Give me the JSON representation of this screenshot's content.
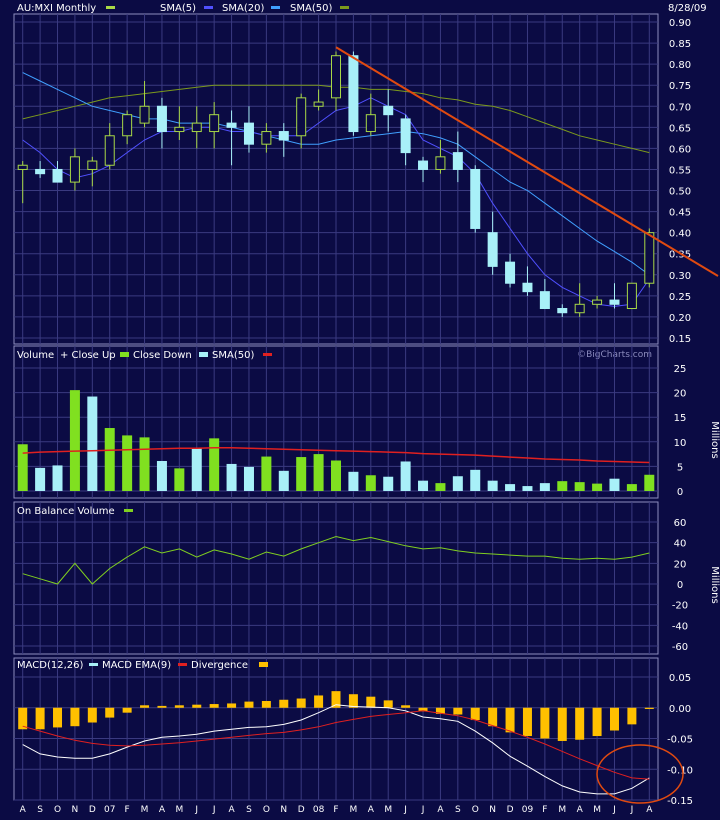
{
  "header": {
    "symbol_label": "AU:MXI Monthly",
    "date": "8/28/09"
  },
  "watermark": "©BigCharts.com",
  "colors": {
    "background": "#0b0b44",
    "grid": "#3a3a80",
    "border": "#8c8cbe",
    "candle_up": "#a8d846",
    "candle_down": "#a8f0f8",
    "sma5": "#5050ff",
    "sma20": "#40a0ff",
    "sma50": "#7c9a1c",
    "trendline": "#e04a10",
    "vol_up": "#80e020",
    "vol_down": "#a8f0f8",
    "vol_sma": "#e02020",
    "obv": "#80d020",
    "macd": "#ffffff",
    "macd_ema": "#e02020",
    "divergence": "#ffc000",
    "annotation": "#e04a10"
  },
  "panels": {
    "price": {
      "legend": [
        {
          "label": "SMA(5)",
          "swatch": "#5050ff"
        },
        {
          "label": "SMA(20)",
          "swatch": "#40a0ff"
        },
        {
          "label": "SMA(50)",
          "swatch": "#7c9a1c"
        }
      ]
    },
    "volume": {
      "title": "Volume",
      "legend": [
        {
          "label": "+ Close Up",
          "swatch": "#80e020"
        },
        {
          "label": "Close Down",
          "swatch": "#a8f0f8"
        },
        {
          "label": "SMA(50)",
          "swatch": "#e02020"
        }
      ],
      "unit": "Millions"
    },
    "obv": {
      "title": "On Balance Volume",
      "swatch": "#80d020",
      "unit": "Millions"
    },
    "macd": {
      "legend": [
        {
          "label": "MACD(12,26)",
          "swatch": "#a8f0f8"
        },
        {
          "label": "MACD EMA(9)",
          "swatch": "#e02020"
        },
        {
          "label": "Divergence",
          "swatch": "#ffc000"
        }
      ]
    }
  },
  "chart_data": {
    "type": "candlestick",
    "x_tick_labels": [
      "A",
      "S",
      "O",
      "N",
      "D",
      "07",
      "F",
      "M",
      "A",
      "M",
      "J",
      "J",
      "A",
      "S",
      "O",
      "N",
      "D",
      "08",
      "F",
      "M",
      "A",
      "M",
      "J",
      "J",
      "A",
      "S",
      "O",
      "N",
      "D",
      "09",
      "F",
      "M",
      "A",
      "M",
      "J",
      "J",
      "A"
    ],
    "price": {
      "ylim": [
        0.15,
        0.9
      ],
      "y_ticks": [
        "0.90",
        "0.85",
        "0.80",
        "0.75",
        "0.70",
        "0.65",
        "0.60",
        "0.55",
        "0.50",
        "0.45",
        "0.40",
        "0.35",
        "0.30",
        "0.25",
        "0.20",
        "0.15"
      ],
      "candles": [
        {
          "o": 0.55,
          "h": 0.57,
          "l": 0.47,
          "c": 0.56
        },
        {
          "o": 0.55,
          "h": 0.57,
          "l": 0.53,
          "c": 0.54
        },
        {
          "o": 0.55,
          "h": 0.57,
          "l": 0.52,
          "c": 0.52
        },
        {
          "o": 0.52,
          "h": 0.6,
          "l": 0.5,
          "c": 0.58
        },
        {
          "o": 0.55,
          "h": 0.58,
          "l": 0.51,
          "c": 0.57
        },
        {
          "o": 0.56,
          "h": 0.66,
          "l": 0.55,
          "c": 0.63
        },
        {
          "o": 0.63,
          "h": 0.69,
          "l": 0.61,
          "c": 0.68
        },
        {
          "o": 0.66,
          "h": 0.76,
          "l": 0.65,
          "c": 0.7
        },
        {
          "o": 0.7,
          "h": 0.72,
          "l": 0.6,
          "c": 0.64
        },
        {
          "o": 0.64,
          "h": 0.7,
          "l": 0.62,
          "c": 0.65
        },
        {
          "o": 0.64,
          "h": 0.7,
          "l": 0.6,
          "c": 0.66
        },
        {
          "o": 0.64,
          "h": 0.71,
          "l": 0.6,
          "c": 0.68
        },
        {
          "o": 0.66,
          "h": 0.69,
          "l": 0.56,
          "c": 0.65
        },
        {
          "o": 0.66,
          "h": 0.7,
          "l": 0.59,
          "c": 0.61
        },
        {
          "o": 0.61,
          "h": 0.66,
          "l": 0.59,
          "c": 0.64
        },
        {
          "o": 0.64,
          "h": 0.66,
          "l": 0.58,
          "c": 0.62
        },
        {
          "o": 0.63,
          "h": 0.73,
          "l": 0.6,
          "c": 0.72
        },
        {
          "o": 0.7,
          "h": 0.74,
          "l": 0.69,
          "c": 0.71
        },
        {
          "o": 0.72,
          "h": 0.83,
          "l": 0.69,
          "c": 0.82
        },
        {
          "o": 0.82,
          "h": 0.83,
          "l": 0.63,
          "c": 0.64
        },
        {
          "o": 0.64,
          "h": 0.73,
          "l": 0.63,
          "c": 0.68
        },
        {
          "o": 0.7,
          "h": 0.74,
          "l": 0.64,
          "c": 0.68
        },
        {
          "o": 0.67,
          "h": 0.68,
          "l": 0.56,
          "c": 0.59
        },
        {
          "o": 0.57,
          "h": 0.58,
          "l": 0.52,
          "c": 0.55
        },
        {
          "o": 0.55,
          "h": 0.62,
          "l": 0.54,
          "c": 0.58
        },
        {
          "o": 0.59,
          "h": 0.64,
          "l": 0.52,
          "c": 0.55
        },
        {
          "o": 0.55,
          "h": 0.56,
          "l": 0.4,
          "c": 0.41
        },
        {
          "o": 0.4,
          "h": 0.45,
          "l": 0.3,
          "c": 0.32
        },
        {
          "o": 0.33,
          "h": 0.35,
          "l": 0.27,
          "c": 0.28
        },
        {
          "o": 0.28,
          "h": 0.32,
          "l": 0.25,
          "c": 0.26
        },
        {
          "o": 0.26,
          "h": 0.29,
          "l": 0.22,
          "c": 0.22
        },
        {
          "o": 0.22,
          "h": 0.23,
          "l": 0.2,
          "c": 0.21
        },
        {
          "o": 0.21,
          "h": 0.28,
          "l": 0.2,
          "c": 0.23
        },
        {
          "o": 0.23,
          "h": 0.25,
          "l": 0.22,
          "c": 0.24
        },
        {
          "o": 0.24,
          "h": 0.28,
          "l": 0.22,
          "c": 0.23
        },
        {
          "o": 0.22,
          "h": 0.28,
          "l": 0.22,
          "c": 0.28
        },
        {
          "o": 0.28,
          "h": 0.41,
          "l": 0.27,
          "c": 0.4
        }
      ],
      "sma5": [
        0.62,
        0.59,
        0.55,
        0.53,
        0.54,
        0.56,
        0.59,
        0.62,
        0.64,
        0.64,
        0.65,
        0.65,
        0.64,
        0.64,
        0.63,
        0.63,
        0.63,
        0.66,
        0.69,
        0.7,
        0.72,
        0.7,
        0.68,
        0.62,
        0.6,
        0.58,
        0.54,
        0.47,
        0.41,
        0.35,
        0.3,
        0.27,
        0.25,
        0.23,
        0.225,
        0.23,
        0.29
      ],
      "sma20": [
        0.78,
        0.76,
        0.74,
        0.72,
        0.7,
        0.69,
        0.68,
        0.67,
        0.67,
        0.66,
        0.66,
        0.66,
        0.65,
        0.64,
        0.63,
        0.62,
        0.61,
        0.61,
        0.62,
        0.625,
        0.63,
        0.635,
        0.64,
        0.635,
        0.625,
        0.61,
        0.58,
        0.55,
        0.52,
        0.5,
        0.47,
        0.44,
        0.41,
        0.38,
        0.355,
        0.33,
        0.3
      ],
      "sma50": [
        0.67,
        0.68,
        0.69,
        0.7,
        0.71,
        0.72,
        0.725,
        0.73,
        0.735,
        0.74,
        0.745,
        0.75,
        0.75,
        0.75,
        0.75,
        0.75,
        0.75,
        0.75,
        0.745,
        0.745,
        0.74,
        0.74,
        0.735,
        0.73,
        0.72,
        0.715,
        0.705,
        0.7,
        0.69,
        0.675,
        0.66,
        0.645,
        0.63,
        0.62,
        0.61,
        0.6,
        0.59
      ],
      "trendline": [
        [
          18,
          0.84
        ],
        [
          37,
          0.37
        ]
      ]
    },
    "volume": {
      "ylim": [
        0,
        25
      ],
      "y_ticks": [
        "25",
        "20",
        "15",
        "10",
        "5",
        "0"
      ],
      "bars": [
        {
          "v": 9.5,
          "up": true
        },
        {
          "v": 4.7,
          "up": false
        },
        {
          "v": 5.2,
          "up": false
        },
        {
          "v": 20.5,
          "up": true
        },
        {
          "v": 19.2,
          "up": false
        },
        {
          "v": 12.8,
          "up": true
        },
        {
          "v": 11.3,
          "up": true
        },
        {
          "v": 10.9,
          "up": true
        },
        {
          "v": 6.1,
          "up": false
        },
        {
          "v": 4.6,
          "up": true
        },
        {
          "v": 8.8,
          "up": false
        },
        {
          "v": 10.7,
          "up": true
        },
        {
          "v": 5.5,
          "up": false
        },
        {
          "v": 4.9,
          "up": false
        },
        {
          "v": 7.0,
          "up": true
        },
        {
          "v": 4.1,
          "up": false
        },
        {
          "v": 6.9,
          "up": true
        },
        {
          "v": 7.5,
          "up": true
        },
        {
          "v": 6.2,
          "up": true
        },
        {
          "v": 3.9,
          "up": false
        },
        {
          "v": 3.2,
          "up": true
        },
        {
          "v": 2.9,
          "up": false
        },
        {
          "v": 6.0,
          "up": false
        },
        {
          "v": 2.1,
          "up": false
        },
        {
          "v": 1.6,
          "up": true
        },
        {
          "v": 3.0,
          "up": false
        },
        {
          "v": 4.3,
          "up": false
        },
        {
          "v": 2.1,
          "up": false
        },
        {
          "v": 1.4,
          "up": false
        },
        {
          "v": 1.0,
          "up": false
        },
        {
          "v": 1.6,
          "up": false
        },
        {
          "v": 2.0,
          "up": true
        },
        {
          "v": 1.8,
          "up": true
        },
        {
          "v": 1.5,
          "up": true
        },
        {
          "v": 2.5,
          "up": false
        },
        {
          "v": 1.4,
          "up": true
        },
        {
          "v": 3.3,
          "up": true
        }
      ],
      "sma50": [
        7.7,
        7.9,
        8.0,
        8.1,
        8.2,
        8.3,
        8.4,
        8.5,
        8.6,
        8.7,
        8.7,
        8.8,
        8.8,
        8.7,
        8.6,
        8.5,
        8.4,
        8.3,
        8.2,
        8.1,
        8.0,
        7.9,
        7.8,
        7.6,
        7.5,
        7.4,
        7.3,
        7.1,
        6.9,
        6.7,
        6.5,
        6.4,
        6.3,
        6.1,
        6.0,
        5.9,
        5.8
      ]
    },
    "obv": {
      "ylim": [
        -60,
        60
      ],
      "y_ticks": [
        "60",
        "40",
        "20",
        "0",
        "-20",
        "-40",
        "-60"
      ],
      "values": [
        10,
        5,
        0,
        20,
        0,
        15,
        26,
        36,
        30,
        34,
        26,
        33,
        29,
        24,
        31,
        27,
        34,
        40,
        46,
        42,
        45,
        41,
        37,
        34,
        35,
        32,
        30,
        29,
        28,
        27,
        27,
        25,
        24,
        25,
        24,
        26,
        30
      ]
    },
    "macd": {
      "ylim": [
        -0.15,
        0.05
      ],
      "y_ticks": [
        "0.05",
        "0.00",
        "-0.05",
        "-0.10",
        "-0.15"
      ],
      "macd": [
        -0.06,
        -0.075,
        -0.08,
        -0.082,
        -0.082,
        -0.075,
        -0.064,
        -0.054,
        -0.048,
        -0.046,
        -0.043,
        -0.038,
        -0.035,
        -0.032,
        -0.031,
        -0.027,
        -0.02,
        -0.008,
        0.005,
        0.002,
        0.001,
        0.0,
        -0.005,
        -0.015,
        -0.018,
        -0.022,
        -0.038,
        -0.057,
        -0.079,
        -0.095,
        -0.112,
        -0.127,
        -0.137,
        -0.14,
        -0.14,
        -0.131,
        -0.114
      ],
      "ema": [
        -0.03,
        -0.038,
        -0.046,
        -0.053,
        -0.058,
        -0.061,
        -0.062,
        -0.061,
        -0.059,
        -0.057,
        -0.054,
        -0.051,
        -0.048,
        -0.045,
        -0.042,
        -0.04,
        -0.036,
        -0.031,
        -0.024,
        -0.019,
        -0.014,
        -0.011,
        -0.008,
        -0.005,
        -0.009,
        -0.013,
        -0.02,
        -0.029,
        -0.038,
        -0.048,
        -0.059,
        -0.071,
        -0.083,
        -0.094,
        -0.105,
        -0.114,
        -0.116
      ],
      "divergence": [
        -0.035,
        -0.035,
        -0.032,
        -0.03,
        -0.024,
        -0.016,
        -0.008,
        0.004,
        0.003,
        0.004,
        0.005,
        0.006,
        0.007,
        0.01,
        0.011,
        0.013,
        0.015,
        0.02,
        0.027,
        0.022,
        0.018,
        0.012,
        0.004,
        -0.006,
        -0.01,
        -0.011,
        -0.02,
        -0.03,
        -0.04,
        -0.046,
        -0.05,
        -0.054,
        -0.052,
        -0.046,
        -0.037,
        -0.027,
        -0.002
      ]
    }
  }
}
